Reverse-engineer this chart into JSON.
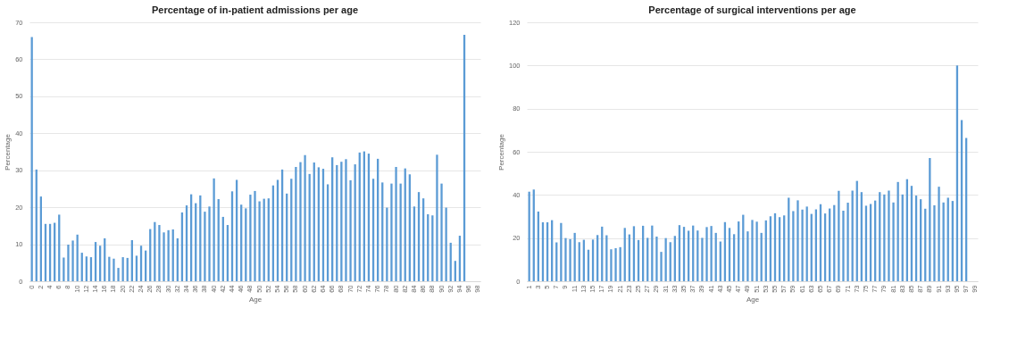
{
  "chart_data": [
    {
      "type": "bar",
      "title": "Percentage of in-patient admissions per age",
      "xlabel": "Age",
      "ylabel": "Percentage",
      "color": "#5b9bd5",
      "grid": "y",
      "ylim": [
        0,
        70
      ],
      "yticks": [
        0,
        10,
        20,
        30,
        40,
        50,
        60,
        70
      ],
      "categories": [
        "0",
        null,
        "2",
        null,
        "4",
        null,
        "6",
        null,
        "8",
        null,
        "10",
        null,
        "12",
        null,
        "14",
        null,
        "16",
        null,
        "18",
        null,
        "20",
        null,
        "22",
        null,
        "24",
        null,
        "26",
        null,
        "28",
        null,
        "30",
        null,
        "32",
        null,
        "34",
        null,
        "36",
        null,
        "38",
        null,
        "40",
        null,
        "42",
        null,
        "44",
        null,
        "46",
        null,
        "48",
        null,
        "50",
        null,
        "52",
        null,
        "54",
        null,
        "56",
        null,
        "58",
        null,
        "60",
        null,
        "62",
        null,
        "64",
        null,
        "66",
        null,
        "68",
        null,
        "70",
        null,
        "72",
        null,
        "74",
        null,
        "76",
        null,
        "78",
        null,
        "80",
        null,
        "82",
        null,
        "84",
        null,
        "86",
        null,
        "88",
        null,
        "90",
        null,
        "92",
        null,
        "94",
        null,
        "96",
        null,
        "98"
      ],
      "values": [
        66,
        30.2,
        22.9,
        15.5,
        15.5,
        15.8,
        18,
        6.4,
        9.9,
        11,
        12.6,
        7.7,
        6.7,
        6.5,
        10.6,
        9.6,
        11.6,
        6.6,
        6.1,
        3.6,
        6.5,
        6.3,
        11.1,
        6.9,
        9.6,
        8.3,
        14.1,
        16,
        15.2,
        13.2,
        13.8,
        14,
        11.6,
        18.6,
        20.5,
        23.5,
        21.1,
        23.2,
        18.8,
        20.2,
        27.8,
        22.2,
        17.4,
        15.2,
        24.3,
        27.4,
        20.7,
        19.7,
        23.4,
        24.4,
        21.6,
        22.3,
        22.4,
        25.9,
        27.4,
        30.2,
        23.7,
        27.7,
        30.9,
        32.2,
        34.1,
        29,
        32.1,
        30.8,
        30.4,
        26.2,
        33.5,
        31.4,
        32.3,
        33,
        27.3,
        31.6,
        34.8,
        35.1,
        34.5,
        27.7,
        33.1,
        26.7,
        19.9,
        26.4,
        30.9,
        26.4,
        30.5,
        28.9,
        20.2,
        24.1,
        22.4,
        18.1,
        17.8,
        34.2,
        26.4,
        19.9,
        10.4,
        5.5,
        12.3,
        66.6,
        null,
        null,
        null
      ]
    },
    {
      "type": "bar",
      "title": "Percentage of surgical interventions per age",
      "xlabel": "Age",
      "ylabel": "Percentage",
      "color": "#5b9bd5",
      "grid": "y",
      "ylim": [
        0,
        120
      ],
      "yticks": [
        0,
        20,
        40,
        60,
        80,
        100,
        120
      ],
      "categories": [
        "1",
        null,
        "3",
        null,
        "5",
        null,
        "7",
        null,
        "9",
        null,
        "11",
        null,
        "13",
        null,
        "15",
        null,
        "17",
        null,
        "19",
        null,
        "21",
        null,
        "23",
        null,
        "25",
        null,
        "27",
        null,
        "29",
        null,
        "31",
        null,
        "33",
        null,
        "35",
        null,
        "37",
        null,
        "39",
        null,
        "41",
        null,
        "43",
        null,
        "45",
        null,
        "47",
        null,
        "49",
        null,
        "51",
        null,
        "53",
        null,
        "55",
        null,
        "57",
        null,
        "59",
        null,
        "61",
        null,
        "63",
        null,
        "65",
        null,
        "67",
        null,
        "69",
        null,
        "71",
        null,
        "73",
        null,
        "75",
        null,
        "77",
        null,
        "79",
        null,
        "81",
        null,
        "83",
        null,
        "85",
        null,
        "87",
        null,
        "89",
        null,
        "91",
        null,
        "93",
        null,
        "95",
        null,
        "97",
        null,
        "99"
      ],
      "values": [
        41.5,
        42.5,
        32.3,
        27.3,
        27.3,
        28.3,
        18,
        27,
        20,
        19.5,
        22.4,
        18.1,
        19.2,
        14.6,
        19.3,
        21.4,
        25.3,
        21.3,
        14.8,
        15.3,
        15.8,
        24.7,
        21.7,
        25.5,
        19.1,
        25.7,
        20.1,
        25.8,
        20.7,
        13.6,
        20,
        18.1,
        21,
        26,
        25.2,
        23.4,
        25.8,
        23.5,
        20.1,
        25.1,
        25.6,
        22.4,
        18.4,
        27.4,
        24.7,
        21.8,
        27.7,
        30.8,
        23.1,
        28.4,
        27.6,
        22.4,
        28.2,
        30.1,
        31.5,
        29.7,
        30.5,
        38.7,
        32.5,
        37.5,
        33.2,
        34.6,
        31.2,
        33.3,
        35.7,
        31.4,
        33.7,
        35.3,
        41.9,
        32.7,
        36.4,
        42,
        46.5,
        41.3,
        35,
        35.8,
        37.4,
        41.3,
        40.2,
        42,
        36.5,
        46,
        40.2,
        47.3,
        44.2,
        39.7,
        38,
        33.6,
        57.1,
        35.2,
        43.8,
        36.5,
        38.7,
        37.2,
        100,
        74.7,
        66.4,
        null,
        null
      ]
    }
  ]
}
